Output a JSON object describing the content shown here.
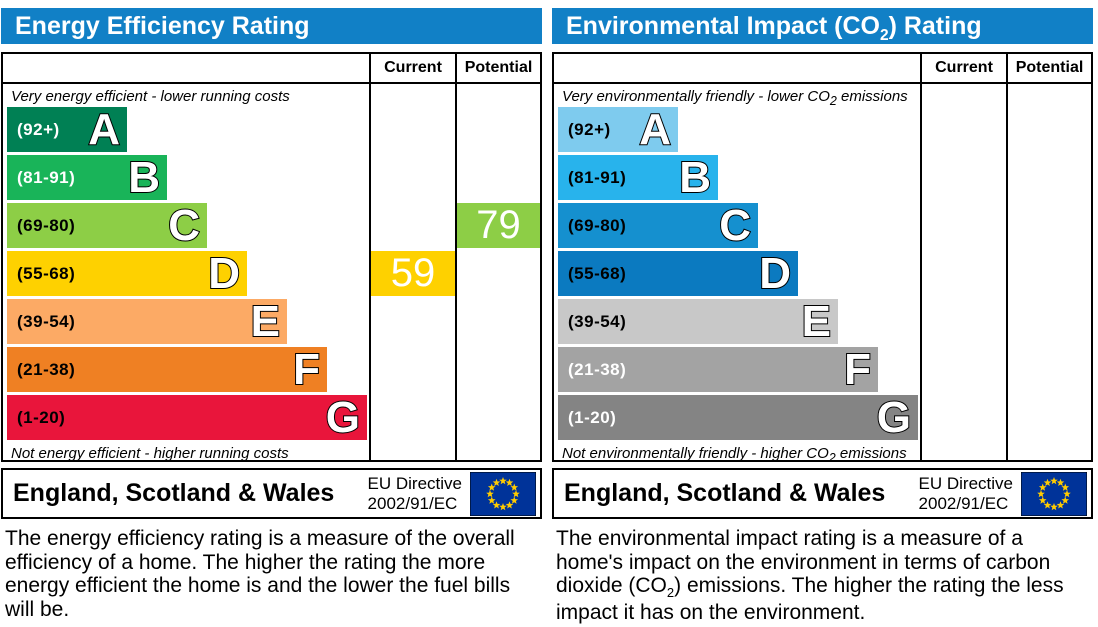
{
  "panels": [
    {
      "title_parts": [
        {
          "t": "Energy Efficiency Rating"
        }
      ],
      "columns": {
        "current": "Current",
        "potential": "Potential"
      },
      "top_note_parts": [
        {
          "t": "Very energy efficient - lower running costs"
        }
      ],
      "bottom_note_parts": [
        {
          "t": "Not energy efficient - higher running costs"
        }
      ],
      "bands": [
        {
          "grade": "A",
          "range": "(92+)",
          "color": "#008054",
          "label_color": "#ffffff"
        },
        {
          "grade": "B",
          "range": "(81-91)",
          "color": "#19b459",
          "label_color": "#ffffff"
        },
        {
          "grade": "C",
          "range": "(69-80)",
          "color": "#8dce46",
          "label_color": "#000000"
        },
        {
          "grade": "D",
          "range": "(55-68)",
          "color": "#fed100",
          "label_color": "#000000"
        },
        {
          "grade": "E",
          "range": "(39-54)",
          "color": "#fcaa65",
          "label_color": "#000000"
        },
        {
          "grade": "F",
          "range": "(21-38)",
          "color": "#ef8023",
          "label_color": "#000000"
        },
        {
          "grade": "G",
          "range": "(1-20)",
          "color": "#e9153b",
          "label_color": "#000000"
        }
      ],
      "scores": {
        "current": {
          "value": "59",
          "band": "D",
          "row_index": 3,
          "color": "#fed100"
        },
        "potential": {
          "value": "79",
          "band": "C",
          "row_index": 2,
          "color": "#8dce46"
        }
      },
      "footer": {
        "region": "England, Scotland & Wales",
        "directive_line1": "EU Directive",
        "directive_line2": "2002/91/EC"
      },
      "description_parts": [
        {
          "t": "The energy efficiency rating is a measure of the overall efficiency of a home. The higher the rating the more energy efficient the home is and the lower the fuel bills will be."
        }
      ]
    },
    {
      "title_parts": [
        {
          "t": "Environmental Impact (CO"
        },
        {
          "sub": "2"
        },
        {
          "t": ") Rating"
        }
      ],
      "columns": {
        "current": "Current",
        "potential": "Potential"
      },
      "top_note_parts": [
        {
          "t": "Very environmentally friendly - lower CO"
        },
        {
          "sub": "2"
        },
        {
          "t": " emissions"
        }
      ],
      "bottom_note_parts": [
        {
          "t": "Not environmentally friendly - higher CO"
        },
        {
          "sub": "2"
        },
        {
          "t": " emissions"
        }
      ],
      "bands": [
        {
          "grade": "A",
          "range": "(92+)",
          "color": "#7ecbee",
          "label_color": "#000000"
        },
        {
          "grade": "B",
          "range": "(81-91)",
          "color": "#28b3ec",
          "label_color": "#000000"
        },
        {
          "grade": "C",
          "range": "(69-80)",
          "color": "#1590cf",
          "label_color": "#000000"
        },
        {
          "grade": "D",
          "range": "(55-68)",
          "color": "#0b7ac0",
          "label_color": "#000000"
        },
        {
          "grade": "E",
          "range": "(39-54)",
          "color": "#c8c8c8",
          "label_color": "#000000"
        },
        {
          "grade": "F",
          "range": "(21-38)",
          "color": "#a3a3a3",
          "label_color": "#ffffff"
        },
        {
          "grade": "G",
          "range": "(1-20)",
          "color": "#848484",
          "label_color": "#ffffff"
        }
      ],
      "scores": {
        "current": null,
        "potential": null
      },
      "footer": {
        "region": "England, Scotland & Wales",
        "directive_line1": "EU Directive",
        "directive_line2": "2002/91/EC"
      },
      "description_parts": [
        {
          "t": "The environmental impact rating is a measure of a home's impact on the environment in terms of carbon dioxide (CO"
        },
        {
          "sub": "2"
        },
        {
          "t": ") emissions. The higher the rating the less impact it has on the environment."
        }
      ]
    }
  ],
  "chart_data": [
    {
      "type": "bar",
      "title": "Energy Efficiency Rating",
      "categories": [
        "A (92+)",
        "B (81-91)",
        "C (69-80)",
        "D (55-68)",
        "E (39-54)",
        "F (21-38)",
        "G (1-20)"
      ],
      "series": [
        {
          "name": "band-bar-relative-length",
          "values": [
            1,
            2,
            3,
            4,
            5,
            6,
            7
          ]
        }
      ],
      "current_value": 59,
      "current_band": "D",
      "potential_value": 79,
      "potential_band": "C",
      "column_headers": [
        "Current",
        "Potential"
      ],
      "annotations": [
        "Very energy efficient - lower running costs",
        "Not energy efficient - higher running costs"
      ],
      "footer": "England, Scotland & Wales — EU Directive 2002/91/EC",
      "legend_position": "none",
      "grid": false
    },
    {
      "type": "bar",
      "title": "Environmental Impact (CO2) Rating",
      "categories": [
        "A (92+)",
        "B (81-91)",
        "C (69-80)",
        "D (55-68)",
        "E (39-54)",
        "F (21-38)",
        "G (1-20)"
      ],
      "series": [
        {
          "name": "band-bar-relative-length",
          "values": [
            1,
            2,
            3,
            4,
            5,
            6,
            7
          ]
        }
      ],
      "current_value": null,
      "current_band": null,
      "potential_value": null,
      "potential_band": null,
      "column_headers": [
        "Current",
        "Potential"
      ],
      "annotations": [
        "Very environmentally friendly - lower CO2 emissions",
        "Not environmentally friendly - higher CO2 emissions"
      ],
      "footer": "England, Scotland & Wales — EU Directive 2002/91/EC",
      "legend_position": "none",
      "grid": false
    }
  ],
  "colors": {
    "header_bar": "#1180c6",
    "eu_flag_blue": "#003399",
    "eu_flag_star": "#ffcc00"
  }
}
